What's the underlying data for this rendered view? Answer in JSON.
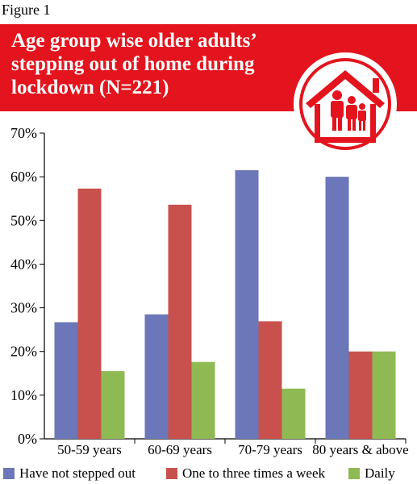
{
  "figure_label": "Figure 1",
  "chart_data": {
    "type": "bar",
    "title": "Age group wise older adults’ stepping out of home during lockdown (N=221)",
    "categories": [
      "50-59 years",
      "60-69 years",
      "70-79 years",
      "80 years & above"
    ],
    "series": [
      {
        "name": "Have not stepped out",
        "color": "#6b77b9",
        "values": [
          26.7,
          28.5,
          61.5,
          60.0
        ]
      },
      {
        "name": "One to three times a week",
        "color": "#c8514d",
        "values": [
          57.3,
          53.6,
          26.9,
          20.0
        ]
      },
      {
        "name": "Daily",
        "color": "#8fba53",
        "values": [
          15.5,
          17.6,
          11.5,
          20.0
        ]
      }
    ],
    "ylim": [
      0,
      70
    ],
    "yticks": [
      "0%",
      "10%",
      "20%",
      "30%",
      "40%",
      "50%",
      "60%",
      "70%"
    ],
    "ytick_values": [
      0,
      10,
      20,
      30,
      40,
      50,
      60,
      70
    ],
    "xlabel": "",
    "ylabel": "",
    "grid": false,
    "legend_position": "bottom"
  },
  "colors": {
    "banner": "#e3141d",
    "icon_white": "#ffffff"
  },
  "icon": "family-home-icon"
}
